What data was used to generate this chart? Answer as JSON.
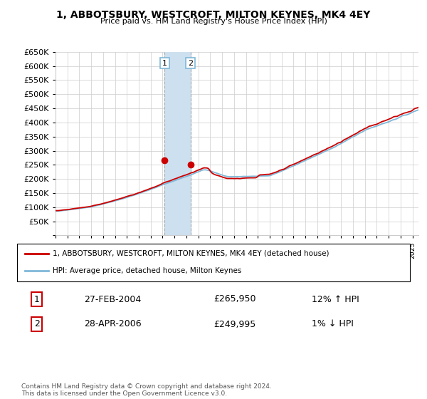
{
  "title": "1, ABBOTSBURY, WESTCROFT, MILTON KEYNES, MK4 4EY",
  "subtitle": "Price paid vs. HM Land Registry's House Price Index (HPI)",
  "legend_line1": "1, ABBOTSBURY, WESTCROFT, MILTON KEYNES, MK4 4EY (detached house)",
  "legend_line2": "HPI: Average price, detached house, Milton Keynes",
  "transaction1_label": "1",
  "transaction1_date": "27-FEB-2004",
  "transaction1_price": "£265,950",
  "transaction1_hpi": "12% ↑ HPI",
  "transaction2_label": "2",
  "transaction2_date": "28-APR-2006",
  "transaction2_price": "£249,995",
  "transaction2_hpi": "1% ↓ HPI",
  "footer": "Contains HM Land Registry data © Crown copyright and database right 2024.\nThis data is licensed under the Open Government Licence v3.0.",
  "hpi_color": "#7fb8d8",
  "price_color": "#cc0000",
  "highlight_color": "#cce0f0",
  "transaction_box_color": "#cc0000",
  "transaction_box_color2": "#7fb8d8",
  "ylim_min": 0,
  "ylim_max": 650000,
  "yticks": [
    0,
    50000,
    100000,
    150000,
    200000,
    250000,
    300000,
    350000,
    400000,
    450000,
    500000,
    550000,
    600000,
    650000
  ],
  "year_start": 1995,
  "year_end": 2025
}
